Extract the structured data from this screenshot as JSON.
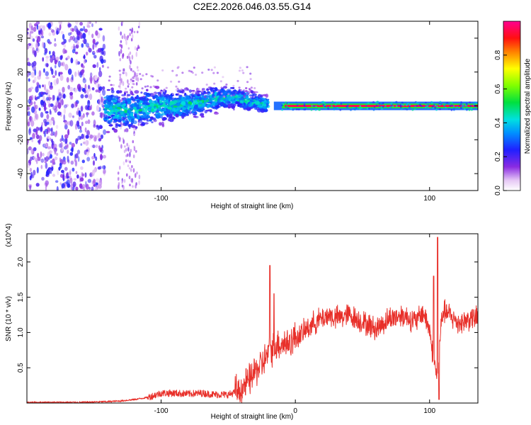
{
  "page_title": "C2E2.2026.046.03.55.G14",
  "chart_data": [
    {
      "type": "heatmap",
      "title": "C2E2.2026.046.03.55.G14",
      "xlabel": "Height of straight line (km)",
      "ylabel": "Frequency (Hz)",
      "xlim": [
        -200,
        136
      ],
      "ylim": [
        -50,
        50
      ],
      "xticks": [
        -100,
        0,
        100
      ],
      "xtick_labels": [
        "-100",
        "",
        "100"
      ],
      "yticks": [
        -40,
        -20,
        0,
        20,
        40
      ],
      "ytick_labels": [
        "-40",
        "-20",
        "0",
        "20",
        "40"
      ],
      "colorbar": {
        "label": "Normalized spectral amplitude",
        "range": [
          0,
          1
        ],
        "ticks": [
          0.0,
          0.2,
          0.4,
          0.6,
          0.8
        ],
        "tick_labels": [
          "0.0",
          "0.2",
          "0.4",
          "0.6",
          "0.8"
        ],
        "colormap": "rainbow (white-violet-blue-cyan-green-yellow-red-magenta)"
      },
      "regions": [
        {
          "x_range": [
            -200,
            -142
          ],
          "freq_halfwidth": 50,
          "amplitude": 0.2,
          "note": "diffuse low-amplitude noise"
        },
        {
          "x_range": [
            -142,
            -20
          ],
          "freq_center": 0,
          "freq_halfwidth_start": 10,
          "freq_halfwidth_end": 4,
          "amplitude": 0.4,
          "note": "wandering signal, slight positive drift near -50 km"
        },
        {
          "x_range": [
            -10,
            136
          ],
          "freq_center": 0,
          "freq_halfwidth": 1,
          "amplitude": 0.95,
          "note": "strong narrow tone at 0 Hz"
        }
      ]
    },
    {
      "type": "line",
      "xlabel": "Height of straight line (km)",
      "ylabel": "SNR (10 * v/v)",
      "y_multiplier": "(x10^4)",
      "xlim": [
        -200,
        136
      ],
      "ylim": [
        0,
        2.4
      ],
      "xticks": [
        -100,
        0,
        100
      ],
      "xtick_labels": [
        "-100",
        "0",
        "100"
      ],
      "yticks": [
        0.5,
        1.0,
        1.5,
        2.0
      ],
      "ytick_labels": [
        "0.5",
        "1.0",
        "1.5",
        "2.0"
      ],
      "series": [
        {
          "name": "SNR",
          "color": "#e8302a",
          "x": [
            -200,
            -160,
            -140,
            -130,
            -120,
            -110,
            -100,
            -90,
            -80,
            -70,
            -60,
            -50,
            -45,
            -40,
            -35,
            -30,
            -25,
            -20,
            -15,
            -10,
            -5,
            0,
            5,
            10,
            15,
            20,
            25,
            30,
            40,
            50,
            60,
            70,
            80,
            90,
            95,
            100,
            103,
            106,
            108,
            110,
            115,
            120,
            125,
            130,
            136
          ],
          "values": [
            0.01,
            0.01,
            0.02,
            0.03,
            0.05,
            0.08,
            0.14,
            0.14,
            0.13,
            0.14,
            0.12,
            0.12,
            0.15,
            0.2,
            0.3,
            0.45,
            0.55,
            0.7,
            0.82,
            0.85,
            0.85,
            0.93,
            0.98,
            1.08,
            1.15,
            1.2,
            1.25,
            1.2,
            1.25,
            1.15,
            1.05,
            1.2,
            1.25,
            1.15,
            1.3,
            1.05,
            0.6,
            0.35,
            1.0,
            1.3,
            1.25,
            1.15,
            1.15,
            1.2,
            1.2
          ],
          "spikes": [
            {
              "x": -19,
              "value": 1.95
            },
            {
              "x": -16,
              "value": 1.55
            },
            {
              "x": 106,
              "value": 2.35
            },
            {
              "x": 107,
              "value": 0.05
            },
            {
              "x": 103,
              "value": 1.8
            }
          ]
        }
      ]
    }
  ]
}
